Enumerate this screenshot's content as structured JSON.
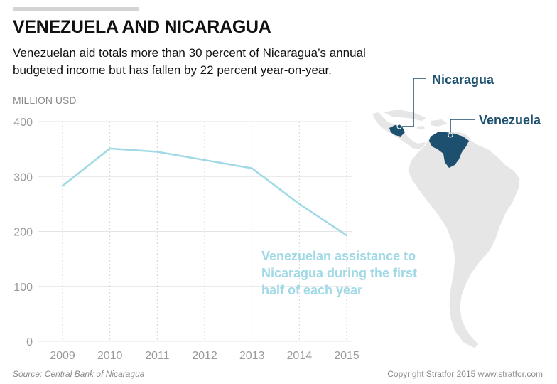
{
  "header": {
    "title": "VENEZUELA AND NICARAGUA",
    "subtitle": "Venezuelan aid totals more than 30 percent of Nicaragua’s annual budgeted income but has fallen by 22 percent year-on-year."
  },
  "footer": {
    "source": "Source: Central Bank of Nicaragua",
    "copyright": "Copyright Stratfor 2015   www.stratfor.com"
  },
  "map": {
    "labels": [
      "Nicaragua",
      "Venezuela"
    ],
    "highlight_color": "#1d4f6e",
    "land_color": "#e6e6e6"
  },
  "chart_data": {
    "type": "line",
    "ylabel": "MILLION USD",
    "ylim": [
      0,
      400
    ],
    "yticks": [
      0,
      100,
      200,
      300,
      400
    ],
    "x": [
      "2009",
      "2010",
      "2011",
      "2012",
      "2013",
      "2014",
      "2015"
    ],
    "series": [
      {
        "name": "Venezuelan assistance to Nicaragua during the first half of each year",
        "values": [
          283,
          351,
          345,
          330,
          315,
          250,
          193
        ],
        "color": "#9fd9e6"
      }
    ],
    "grid": true
  }
}
